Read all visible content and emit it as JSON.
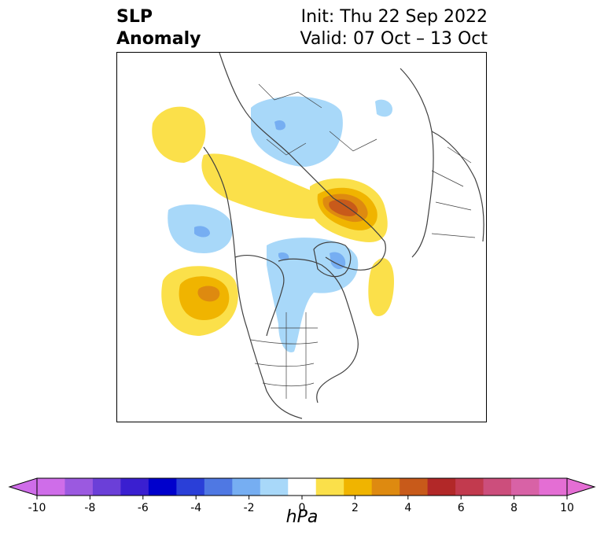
{
  "title": {
    "left_line1": "SLP",
    "left_line2": "Anomaly",
    "init": "Init: Thu 22 Sep 2022",
    "valid": "Valid: 07 Oct – 13 Oct"
  },
  "colorbar": {
    "unit_label": "hPa",
    "tick_labels": [
      "-10",
      "-8",
      "-6",
      "-4",
      "-2",
      "0",
      "2",
      "4",
      "6",
      "8",
      "10"
    ],
    "levels": [
      -10,
      -9,
      -8,
      -7,
      -6,
      -5,
      -4,
      -3,
      -2,
      -1,
      1,
      2,
      3,
      4,
      5,
      6,
      7,
      8,
      9,
      10
    ],
    "colors": [
      "#cf6de9",
      "#9b59e0",
      "#6b3fd8",
      "#3a1fd0",
      "#0000cc",
      "#2a3fd8",
      "#4f78e3",
      "#76aef2",
      "#a8d8f9",
      "#ffffff",
      "#fbe04a",
      "#f0b400",
      "#de8a10",
      "#c85a1a",
      "#b22828",
      "#c23a4e",
      "#cc4e7c",
      "#d862a6",
      "#e46ed4"
    ],
    "extend": "both"
  },
  "map": {
    "projection": "north-polar-stereographic",
    "anomaly_centers": [
      {
        "name": "north-pacific-high",
        "sign": "positive",
        "peak_hpa": 4
      },
      {
        "name": "eurasia-high",
        "sign": "positive",
        "peak_hpa": 6
      },
      {
        "name": "greenland-low",
        "sign": "negative",
        "peak_hpa": -3
      },
      {
        "name": "siberia-low",
        "sign": "negative",
        "peak_hpa": -3
      },
      {
        "name": "gulf-of-alaska-low",
        "sign": "negative",
        "peak_hpa": -3
      }
    ]
  }
}
